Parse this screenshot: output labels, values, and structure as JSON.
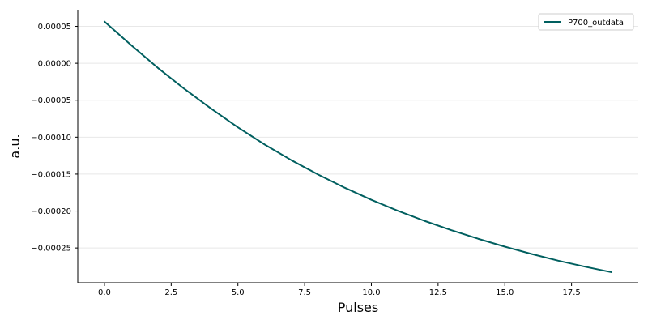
{
  "colors": {
    "series": "#005f5f",
    "grid": "#e8e8e8",
    "axis": "#000000"
  },
  "chart_data": {
    "type": "line",
    "title": "",
    "xlabel": "Pulses",
    "ylabel": "a.u.",
    "xlim": [
      -1,
      20
    ],
    "ylim": [
      -0.000297,
      7.25e-05
    ],
    "grid": "horizontal",
    "legend_position": "top-right",
    "x_ticks": [
      0.0,
      2.5,
      5.0,
      7.5,
      10.0,
      12.5,
      15.0,
      17.5
    ],
    "x_tick_labels": [
      "0.0",
      "2.5",
      "5.0",
      "7.5",
      "10.0",
      "12.5",
      "15.0",
      "17.5"
    ],
    "y_ticks": [
      5e-05,
      0.0,
      -5e-05,
      -0.0001,
      -0.00015,
      -0.0002,
      -0.00025
    ],
    "y_tick_labels": [
      "0.00005",
      "0.00000",
      "−0.00005",
      "−0.00010",
      "−0.00015",
      "−0.00020",
      "−0.00025"
    ],
    "x": [
      0,
      1,
      2,
      3,
      4,
      5,
      6,
      7,
      8,
      9,
      10,
      11,
      12,
      13,
      14,
      15,
      16,
      17,
      18,
      19
    ],
    "series": [
      {
        "name": "P700_outdata",
        "values": [
          5.65e-05,
          2.45e-05,
          -6.2e-06,
          -3.48e-05,
          -6.15e-05,
          -8.67e-05,
          -0.0001099,
          -0.0001311,
          -0.0001505,
          -0.0001684,
          -0.0001848,
          -0.0001998,
          -0.0002134,
          -0.0002259,
          -0.0002375,
          -0.0002482,
          -0.0002581,
          -0.0002672,
          -0.0002753,
          -0.0002828
        ]
      }
    ]
  }
}
